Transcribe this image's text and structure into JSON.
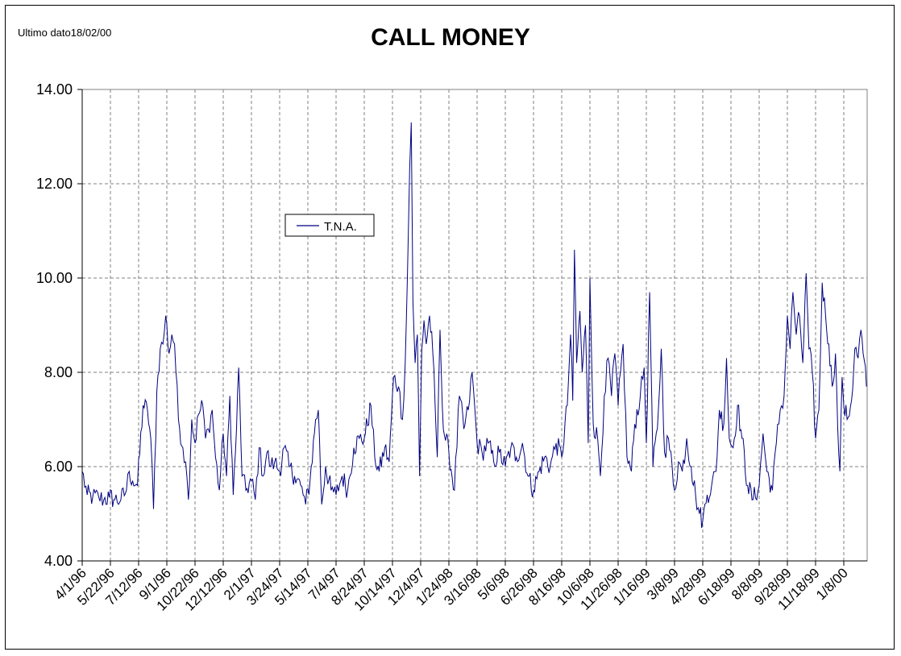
{
  "note": "Ultimo dato18/02/00",
  "chart_data": {
    "type": "line",
    "title": "CALL MONEY",
    "xlabel": "",
    "ylabel": "",
    "ylim": [
      4.0,
      14.0
    ],
    "y_ticks": [
      "4.00",
      "6.00",
      "8.00",
      "10.00",
      "12.00",
      "14.00"
    ],
    "grid": "dashed",
    "legend_position": "upper-left inside plot",
    "x_ticks": [
      "4/1/96",
      "5/22/96",
      "7/12/96",
      "9/1/96",
      "10/22/96",
      "12/12/96",
      "2/1/97",
      "3/24/97",
      "5/14/97",
      "7/4/97",
      "8/24/97",
      "10/14/97",
      "12/4/97",
      "1/24/98",
      "3/16/98",
      "5/6/98",
      "6/26/98",
      "8/16/98",
      "10/6/98",
      "11/26/98",
      "1/16/99",
      "3/8/99",
      "4/28/99",
      "6/18/99",
      "8/8/99",
      "9/28/99",
      "11/18/99",
      "1/8/00"
    ],
    "series": [
      {
        "name": "T.N.A.",
        "color": "#000080",
        "points": [
          [
            "1996-04-01",
            5.9
          ],
          [
            "1996-04-10",
            5.4
          ],
          [
            "1996-04-20",
            5.35
          ],
          [
            "1996-05-01",
            5.35
          ],
          [
            "1996-05-10",
            5.3
          ],
          [
            "1996-05-20",
            5.35
          ],
          [
            "1996-05-30",
            5.3
          ],
          [
            "1996-06-10",
            5.3
          ],
          [
            "1996-06-20",
            5.5
          ],
          [
            "1996-06-25",
            5.9
          ],
          [
            "1996-07-01",
            5.7
          ],
          [
            "1996-07-10",
            5.6
          ],
          [
            "1996-07-20",
            7.3
          ],
          [
            "1996-07-28",
            7.2
          ],
          [
            "1996-08-03",
            6.6
          ],
          [
            "1996-08-08",
            5.1
          ],
          [
            "1996-08-14",
            7.6
          ],
          [
            "1996-08-20",
            8.5
          ],
          [
            "1996-08-25",
            8.6
          ],
          [
            "1996-08-30",
            9.2
          ],
          [
            "1996-09-05",
            8.4
          ],
          [
            "1996-09-10",
            8.8
          ],
          [
            "1996-09-15",
            8.6
          ],
          [
            "1996-09-22",
            7.0
          ],
          [
            "1996-09-30",
            6.4
          ],
          [
            "1996-10-05",
            6.1
          ],
          [
            "1996-10-10",
            5.3
          ],
          [
            "1996-10-16",
            7.0
          ],
          [
            "1996-10-22",
            6.5
          ],
          [
            "1996-10-28",
            7.1
          ],
          [
            "1996-11-05",
            7.3
          ],
          [
            "1996-11-10",
            6.6
          ],
          [
            "1996-11-15",
            6.8
          ],
          [
            "1996-11-22",
            7.2
          ],
          [
            "1996-11-28",
            6.2
          ],
          [
            "1996-12-05",
            5.5
          ],
          [
            "1996-12-12",
            6.7
          ],
          [
            "1996-12-18",
            5.8
          ],
          [
            "1996-12-24",
            7.5
          ],
          [
            "1996-12-30",
            5.4
          ],
          [
            "1997-01-05",
            6.8
          ],
          [
            "1997-01-09",
            8.1
          ],
          [
            "1997-01-15",
            5.8
          ],
          [
            "1997-01-22",
            5.5
          ],
          [
            "1997-02-01",
            5.7
          ],
          [
            "1997-02-08",
            5.3
          ],
          [
            "1997-02-15",
            6.4
          ],
          [
            "1997-02-22",
            5.8
          ],
          [
            "1997-03-01",
            6.3
          ],
          [
            "1997-03-08",
            6.0
          ],
          [
            "1997-03-15",
            6.1
          ],
          [
            "1997-03-24",
            5.9
          ],
          [
            "1997-04-01",
            6.4
          ],
          [
            "1997-04-10",
            6.0
          ],
          [
            "1997-04-20",
            5.8
          ],
          [
            "1997-05-01",
            5.6
          ],
          [
            "1997-05-10",
            5.2
          ],
          [
            "1997-05-18",
            5.7
          ],
          [
            "1997-05-28",
            7.0
          ],
          [
            "1997-06-02",
            7.2
          ],
          [
            "1997-06-08",
            5.2
          ],
          [
            "1997-06-15",
            6.0
          ],
          [
            "1997-06-25",
            5.5
          ],
          [
            "1997-07-04",
            5.4
          ],
          [
            "1997-07-15",
            5.8
          ],
          [
            "1997-07-25",
            5.5
          ],
          [
            "1997-08-05",
            6.4
          ],
          [
            "1997-08-15",
            6.6
          ],
          [
            "1997-08-24",
            6.6
          ],
          [
            "1997-09-05",
            7.3
          ],
          [
            "1997-09-12",
            6.2
          ],
          [
            "1997-09-20",
            5.9
          ],
          [
            "1997-09-30",
            6.4
          ],
          [
            "1997-10-08",
            6.1
          ],
          [
            "1997-10-16",
            7.9
          ],
          [
            "1997-10-25",
            7.7
          ],
          [
            "1997-11-01",
            7.0
          ],
          [
            "1997-11-06",
            8.2
          ],
          [
            "1997-11-10",
            10.0
          ],
          [
            "1997-11-14",
            12.3
          ],
          [
            "1997-11-17",
            13.3
          ],
          [
            "1997-11-20",
            9.5
          ],
          [
            "1997-11-24",
            8.2
          ],
          [
            "1997-11-28",
            8.8
          ],
          [
            "1997-12-02",
            5.8
          ],
          [
            "1997-12-06",
            8.5
          ],
          [
            "1997-12-10",
            9.1
          ],
          [
            "1997-12-14",
            8.6
          ],
          [
            "1997-12-20",
            9.2
          ],
          [
            "1997-12-26",
            8.4
          ],
          [
            "1998-01-03",
            6.2
          ],
          [
            "1998-01-08",
            8.9
          ],
          [
            "1998-01-14",
            6.8
          ],
          [
            "1998-01-24",
            6.3
          ],
          [
            "1998-02-03",
            5.5
          ],
          [
            "1998-02-12",
            7.5
          ],
          [
            "1998-02-20",
            6.8
          ],
          [
            "1998-02-28",
            7.2
          ],
          [
            "1998-03-07",
            8.0
          ],
          [
            "1998-03-16",
            6.5
          ],
          [
            "1998-03-25",
            6.3
          ],
          [
            "1998-04-05",
            6.5
          ],
          [
            "1998-04-15",
            6.1
          ],
          [
            "1998-04-25",
            6.3
          ],
          [
            "1998-05-06",
            6.0
          ],
          [
            "1998-05-16",
            6.4
          ],
          [
            "1998-05-26",
            6.2
          ],
          [
            "1998-06-06",
            6.5
          ],
          [
            "1998-06-16",
            5.8
          ],
          [
            "1998-06-26",
            5.5
          ],
          [
            "1998-07-06",
            5.9
          ],
          [
            "1998-07-16",
            6.2
          ],
          [
            "1998-07-26",
            6.0
          ],
          [
            "1998-08-06",
            6.5
          ],
          [
            "1998-08-16",
            6.2
          ],
          [
            "1998-08-26",
            7.3
          ],
          [
            "1998-09-01",
            8.8
          ],
          [
            "1998-09-05",
            7.4
          ],
          [
            "1998-09-08",
            10.6
          ],
          [
            "1998-09-12",
            8.2
          ],
          [
            "1998-09-18",
            9.3
          ],
          [
            "1998-09-22",
            8.0
          ],
          [
            "1998-09-28",
            9.0
          ],
          [
            "1998-10-03",
            6.5
          ],
          [
            "1998-10-06",
            10.0
          ],
          [
            "1998-10-12",
            6.9
          ],
          [
            "1998-10-20",
            6.6
          ],
          [
            "1998-10-25",
            5.8
          ],
          [
            "1998-11-01",
            7.5
          ],
          [
            "1998-11-08",
            8.3
          ],
          [
            "1998-11-14",
            7.5
          ],
          [
            "1998-11-20",
            8.4
          ],
          [
            "1998-11-26",
            7.3
          ],
          [
            "1998-12-05",
            8.6
          ],
          [
            "1998-12-12",
            6.2
          ],
          [
            "1998-12-20",
            5.9
          ],
          [
            "1998-12-26",
            6.9
          ],
          [
            "1999-01-05",
            7.5
          ],
          [
            "1999-01-12",
            8.1
          ],
          [
            "1999-01-16",
            6.5
          ],
          [
            "1999-01-22",
            9.7
          ],
          [
            "1999-01-28",
            6.0
          ],
          [
            "1999-02-05",
            6.8
          ],
          [
            "1999-02-12",
            8.5
          ],
          [
            "1999-02-18",
            6.3
          ],
          [
            "1999-02-25",
            6.6
          ],
          [
            "1999-03-08",
            5.5
          ],
          [
            "1999-03-15",
            6.1
          ],
          [
            "1999-03-22",
            5.9
          ],
          [
            "1999-03-30",
            6.6
          ],
          [
            "1999-04-07",
            6.0
          ],
          [
            "1999-04-15",
            5.4
          ],
          [
            "1999-04-22",
            5.0
          ],
          [
            "1999-04-28",
            4.85
          ],
          [
            "1999-05-06",
            5.4
          ],
          [
            "1999-05-14",
            5.6
          ],
          [
            "1999-05-22",
            5.9
          ],
          [
            "1999-05-28",
            7.2
          ],
          [
            "1999-06-05",
            6.9
          ],
          [
            "1999-06-10",
            8.3
          ],
          [
            "1999-06-15",
            6.6
          ],
          [
            "1999-06-22",
            6.4
          ],
          [
            "1999-06-30",
            7.3
          ],
          [
            "1999-07-08",
            6.6
          ],
          [
            "1999-07-18",
            5.6
          ],
          [
            "1999-07-28",
            5.3
          ],
          [
            "1999-08-08",
            5.6
          ],
          [
            "1999-08-15",
            6.7
          ],
          [
            "1999-08-22",
            5.9
          ],
          [
            "1999-09-01",
            5.5
          ],
          [
            "1999-09-08",
            6.5
          ],
          [
            "1999-09-15",
            7.2
          ],
          [
            "1999-09-22",
            7.5
          ],
          [
            "1999-09-28",
            9.2
          ],
          [
            "1999-10-03",
            8.5
          ],
          [
            "1999-10-08",
            9.7
          ],
          [
            "1999-10-14",
            8.8
          ],
          [
            "1999-10-20",
            9.2
          ],
          [
            "1999-10-26",
            8.2
          ],
          [
            "1999-11-01",
            10.1
          ],
          [
            "1999-11-06",
            8.5
          ],
          [
            "1999-11-12",
            8.0
          ],
          [
            "1999-11-18",
            6.6
          ],
          [
            "1999-11-24",
            7.2
          ],
          [
            "1999-11-30",
            9.9
          ],
          [
            "1999-12-06",
            9.2
          ],
          [
            "1999-12-12",
            8.6
          ],
          [
            "1999-12-18",
            7.7
          ],
          [
            "1999-12-24",
            8.4
          ],
          [
            "1999-12-28",
            6.8
          ],
          [
            "2000-01-01",
            5.9
          ],
          [
            "2000-01-05",
            7.9
          ],
          [
            "2000-01-08",
            7.3
          ],
          [
            "2000-01-14",
            7.0
          ],
          [
            "2000-01-22",
            7.4
          ],
          [
            "2000-01-28",
            8.5
          ],
          [
            "2000-02-03",
            8.3
          ],
          [
            "2000-02-08",
            8.9
          ],
          [
            "2000-02-12",
            8.4
          ],
          [
            "2000-02-18",
            7.7
          ]
        ]
      }
    ]
  }
}
